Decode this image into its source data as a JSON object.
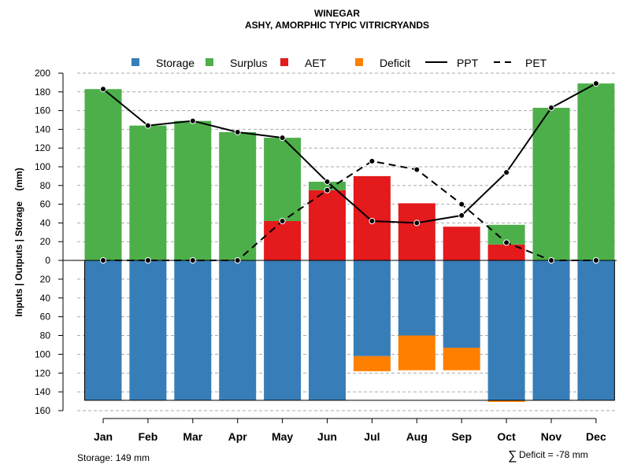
{
  "chart_data": {
    "type": "bar",
    "title": "WINEGAR",
    "subtitle": "ASHY, AMORPHIC TYPIC VITRICRYANDS",
    "ylabel": "Inputs | Outputs | Storage    (mm)",
    "xlabel": "",
    "ylim": [
      -160,
      200
    ],
    "y_ticks": [
      200,
      180,
      160,
      140,
      120,
      100,
      80,
      60,
      40,
      20,
      0,
      -20,
      -40,
      -60,
      -80,
      -100,
      -120,
      -140,
      -160
    ],
    "y_tick_labels": [
      "200",
      "180",
      "160",
      "140",
      "120",
      "100",
      "80",
      "60",
      "40",
      "20",
      "0",
      "20",
      "40",
      "60",
      "80",
      "100",
      "120",
      "140",
      "160"
    ],
    "categories": [
      "Jan",
      "Feb",
      "Mar",
      "Apr",
      "May",
      "Jun",
      "Jul",
      "Aug",
      "Sep",
      "Oct",
      "Nov",
      "Dec"
    ],
    "legend": [
      {
        "label": "Storage",
        "kind": "box",
        "color": "#377eb8"
      },
      {
        "label": "Surplus",
        "kind": "box",
        "color": "#4daf4a"
      },
      {
        "label": "AET",
        "kind": "box",
        "color": "#e41a1c"
      },
      {
        "label": "Deficit",
        "kind": "box",
        "color": "#ff7f00"
      },
      {
        "label": "PPT",
        "kind": "solid",
        "color": "#000000"
      },
      {
        "label": "PET",
        "kind": "dashed",
        "color": "#000000"
      }
    ],
    "series": [
      {
        "name": "AET",
        "color": "#e41a1c",
        "values": [
          0,
          0,
          0,
          0,
          42,
          75,
          90,
          61,
          36,
          17,
          0,
          0
        ]
      },
      {
        "name": "Surplus",
        "color": "#4daf4a",
        "values": [
          183,
          144,
          149,
          137,
          89,
          9,
          0,
          0,
          0,
          21,
          163,
          189
        ]
      },
      {
        "name": "Storage",
        "color": "#377eb8",
        "values": [
          149,
          149,
          149,
          149,
          149,
          149,
          102,
          80,
          93,
          149,
          149,
          149
        ]
      },
      {
        "name": "Deficit",
        "color": "#ff7f00",
        "values": [
          0,
          0,
          0,
          0,
          0,
          0,
          16,
          37,
          24,
          1,
          0,
          0
        ]
      },
      {
        "name": "PPT",
        "color": "#000000",
        "values": [
          183,
          144,
          149,
          137,
          131,
          84,
          42,
          40,
          48,
          94,
          163,
          189
        ]
      },
      {
        "name": "PET",
        "color": "#000000",
        "values": [
          0,
          0,
          0,
          0,
          42,
          75,
          106,
          97,
          60,
          19,
          0,
          0
        ]
      }
    ],
    "storage_capacity": 149,
    "annotations": {
      "storage": "Storage: 149 mm",
      "deficit_symbol": "∑",
      "deficit": "Deficit = -78 mm"
    }
  }
}
